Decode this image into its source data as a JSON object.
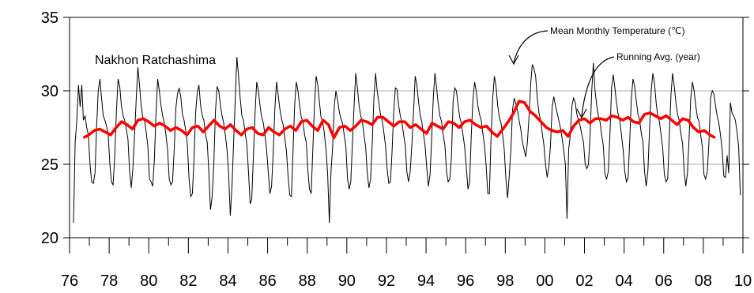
{
  "chart_data": {
    "type": "line",
    "title": "Nakhon Ratchashima",
    "xlabel": "",
    "ylabel": "",
    "xlim": [
      1976,
      2010
    ],
    "ylim": [
      20,
      35
    ],
    "grid": true,
    "x_ticks": [
      "76",
      "78",
      "80",
      "82",
      "84",
      "86",
      "88",
      "90",
      "92",
      "94",
      "96",
      "98",
      "00",
      "02",
      "04",
      "06",
      "08",
      "10"
    ],
    "y_ticks": [
      "20",
      "25",
      "30",
      "35"
    ],
    "annotations": [
      {
        "text": "Mean Monthly Temperature (℃)",
        "series": "monthly"
      },
      {
        "text": "Running Avg. (year)",
        "series": "running"
      }
    ],
    "series": [
      {
        "name": "Mean Monthly Temperature (℃)",
        "color": "#000000",
        "x_start": 1976.2,
        "x_step_months": 1,
        "values": [
          21.0,
          26.5,
          28.0,
          30.4,
          28.9,
          30.4,
          28.0,
          28.3,
          27.5,
          27.0,
          25.0,
          23.8,
          23.7,
          24.4,
          27.5,
          30.0,
          30.8,
          29.5,
          28.3,
          28.0,
          27.6,
          27.0,
          25.0,
          23.8,
          23.6,
          25.6,
          28.6,
          30.8,
          30.3,
          29.0,
          28.3,
          28.0,
          27.4,
          26.7,
          24.5,
          23.4,
          24.8,
          27.0,
          29.5,
          31.6,
          30.4,
          29.0,
          28.2,
          28.0,
          27.2,
          26.3,
          24.0,
          23.8,
          23.5,
          25.3,
          28.5,
          30.8,
          30.0,
          29.0,
          28.3,
          27.8,
          27.0,
          26.0,
          24.0,
          23.6,
          23.8,
          26.0,
          28.8,
          29.8,
          30.2,
          29.6,
          28.4,
          28.0,
          27.3,
          26.3,
          24.0,
          22.8,
          23.0,
          25.4,
          28.5,
          29.9,
          30.4,
          29.0,
          28.3,
          28.0,
          27.0,
          26.5,
          24.5,
          21.9,
          22.8,
          25.0,
          28.6,
          30.3,
          30.0,
          29.0,
          28.3,
          27.8,
          27.0,
          26.0,
          24.3,
          21.5,
          23.5,
          26.5,
          29.5,
          32.3,
          31.0,
          29.5,
          28.3,
          28.0,
          27.1,
          26.4,
          24.5,
          22.3,
          22.6,
          25.5,
          28.5,
          30.6,
          30.0,
          29.0,
          28.2,
          27.8,
          27.0,
          26.0,
          24.5,
          23.0,
          23.5,
          25.8,
          28.8,
          30.6,
          29.7,
          28.8,
          28.1,
          27.7,
          26.8,
          25.9,
          24.2,
          22.9,
          22.8,
          25.8,
          29.0,
          30.6,
          30.0,
          29.0,
          28.2,
          27.9,
          27.0,
          26.5,
          24.6,
          23.3,
          23.0,
          26.0,
          29.0,
          31.0,
          30.4,
          29.2,
          28.2,
          27.9,
          27.1,
          26.0,
          24.3,
          21.0,
          24.5,
          26.2,
          29.0,
          30.0,
          29.4,
          28.6,
          28.1,
          27.8,
          27.0,
          26.2,
          24.0,
          23.3,
          23.8,
          26.4,
          29.0,
          31.2,
          30.2,
          29.0,
          28.3,
          27.9,
          27.0,
          26.2,
          24.4,
          23.4,
          24.0,
          26.5,
          29.5,
          31.2,
          30.0,
          29.2,
          28.4,
          28.0,
          27.2,
          26.3,
          24.7,
          23.7,
          23.8,
          25.8,
          28.5,
          30.2,
          30.1,
          29.0,
          28.3,
          27.8,
          27.0,
          26.3,
          24.5,
          23.8,
          24.5,
          26.3,
          28.5,
          31.0,
          30.4,
          29.3,
          28.4,
          27.9,
          27.1,
          26.3,
          24.8,
          23.5,
          24.3,
          26.8,
          29.5,
          31.2,
          30.2,
          29.1,
          28.3,
          27.9,
          27.0,
          26.3,
          24.5,
          23.8,
          24.0,
          25.5,
          29.3,
          30.2,
          30.0,
          29.0,
          28.2,
          27.8,
          27.0,
          26.2,
          24.8,
          23.3,
          23.8,
          27.0,
          29.4,
          30.6,
          30.0,
          29.0,
          28.4,
          28.0,
          27.1,
          26.3,
          24.9,
          23.0,
          23.0,
          26.8,
          29.5,
          31.0,
          30.3,
          29.0,
          28.2,
          27.8,
          27.0,
          26.0,
          24.0,
          22.7,
          24.2,
          26.0,
          28.7,
          29.5,
          29.1,
          28.7,
          28.0,
          27.4,
          26.5,
          26.0,
          25.5,
          26.5,
          28.3,
          30.5,
          31.8,
          31.5,
          31.0,
          29.5,
          28.5,
          28.0,
          27.1,
          26.3,
          25.0,
          24.1,
          24.8,
          26.3,
          28.9,
          29.6,
          29.0,
          28.5,
          28.0,
          27.5,
          26.8,
          26.0,
          25.0,
          21.3,
          26.0,
          27.0,
          29.0,
          29.5,
          29.2,
          28.4,
          28.0,
          27.6,
          27.0,
          26.5,
          25.0,
          24.7,
          25.0,
          27.0,
          30.0,
          31.9,
          30.0,
          29.0,
          28.3,
          27.9,
          27.0,
          26.3,
          24.3,
          24.0,
          24.5,
          27.0,
          30.2,
          31.1,
          30.2,
          29.2,
          28.4,
          28.0,
          27.0,
          26.0,
          24.5,
          23.8,
          24.1,
          26.5,
          29.5,
          30.8,
          30.3,
          29.3,
          28.4,
          28.0,
          27.1,
          26.5,
          24.5,
          23.5,
          24.5,
          27.3,
          30.0,
          31.2,
          30.5,
          29.2,
          28.3,
          27.9,
          27.0,
          26.1,
          24.3,
          23.8,
          24.0,
          27.0,
          29.8,
          31.2,
          30.3,
          29.2,
          28.4,
          28.0,
          27.1,
          26.4,
          24.5,
          23.5,
          24.4,
          26.8,
          29.5,
          30.6,
          30.0,
          29.0,
          28.2,
          27.9,
          27.0,
          26.2,
          24.3,
          24.0,
          24.5,
          26.5,
          29.5,
          30.0,
          29.8,
          29.0,
          28.3,
          27.8,
          27.0,
          26.0,
          24.2,
          24.1,
          25.6,
          24.4,
          29.2,
          28.5,
          28.3,
          28.0,
          27.2,
          26.2,
          22.9
        ]
      },
      {
        "name": "Running Avg. (year)",
        "color": "#ff0000",
        "x_start": 1976.7,
        "x_end": 2008.6,
        "values": [
          26.8,
          27.0,
          27.3,
          27.4,
          27.2,
          27.0,
          27.5,
          27.9,
          27.7,
          27.4,
          28.0,
          28.1,
          27.9,
          27.6,
          27.8,
          27.6,
          27.3,
          27.5,
          27.3,
          27.0,
          27.5,
          27.6,
          27.2,
          27.6,
          28.0,
          27.6,
          27.4,
          27.7,
          27.3,
          27.0,
          27.4,
          27.5,
          27.1,
          27.0,
          27.5,
          27.2,
          27.0,
          27.4,
          27.6,
          27.3,
          27.9,
          28.0,
          27.6,
          27.3,
          28.0,
          27.7,
          26.8,
          27.5,
          27.6,
          27.3,
          27.6,
          28.0,
          27.9,
          27.7,
          28.2,
          28.2,
          27.9,
          27.6,
          27.9,
          27.9,
          27.5,
          27.7,
          27.4,
          27.1,
          27.8,
          27.6,
          27.4,
          27.9,
          27.8,
          27.5,
          27.9,
          28.0,
          27.7,
          27.5,
          27.6,
          27.2,
          26.9,
          27.4,
          27.9,
          28.5,
          29.3,
          29.2,
          28.6,
          28.3,
          27.9,
          27.5,
          27.3,
          27.2,
          27.3,
          26.9,
          27.6,
          28.0,
          28.1,
          27.8,
          28.1,
          28.1,
          28.0,
          28.3,
          28.2,
          28.0,
          28.2,
          27.9,
          27.8,
          28.4,
          28.5,
          28.3,
          28.1,
          28.3,
          28.0,
          27.7,
          28.1,
          28.0,
          27.5,
          27.2,
          27.3,
          27.0,
          26.8
        ]
      }
    ]
  }
}
